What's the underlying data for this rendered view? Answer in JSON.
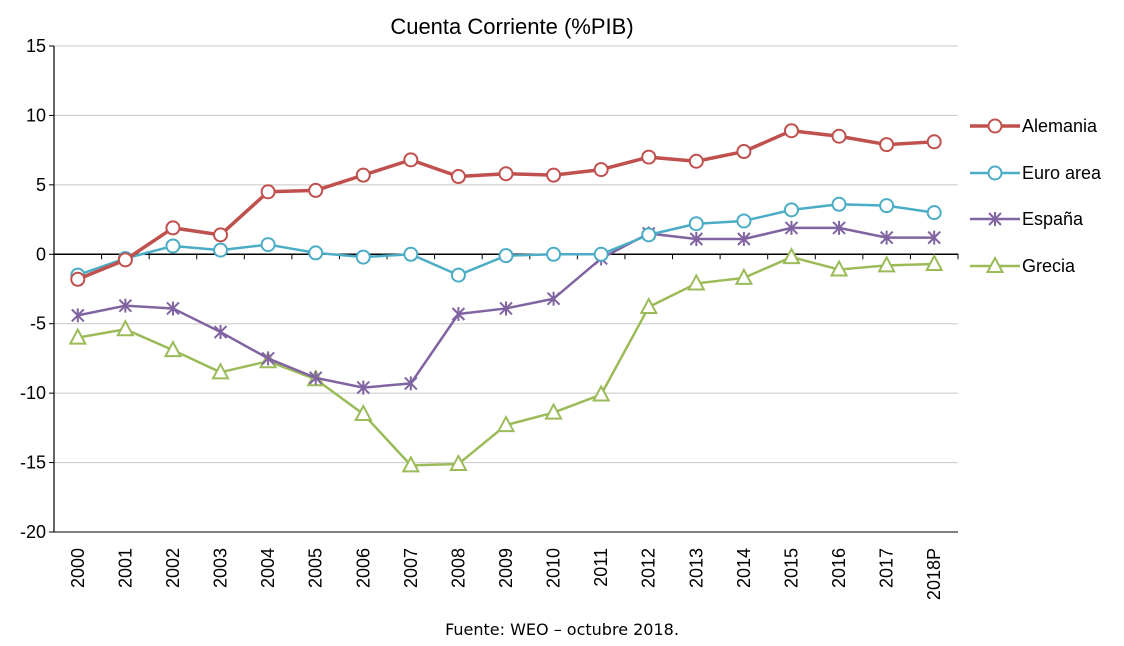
{
  "chart_data": {
    "type": "line",
    "title": "Cuenta Corriente (%PIB)",
    "xlabel": "",
    "ylabel": "",
    "categories": [
      "2000",
      "2001",
      "2002",
      "2003",
      "2004",
      "2005",
      "2006",
      "2007",
      "2008",
      "2009",
      "2010",
      "2011",
      "2012",
      "2013",
      "2014",
      "2015",
      "2016",
      "2017",
      "2018P"
    ],
    "ylim": [
      -20,
      15
    ],
    "yticks": [
      15,
      10,
      5,
      0,
      -5,
      -10,
      -15,
      -20
    ],
    "ytick_labels": [
      "15",
      "10",
      "5",
      "0",
      "-5",
      "-10",
      "-15",
      "-20"
    ],
    "grid": true,
    "legend_position": "right",
    "series": [
      {
        "name": "Alemania",
        "color": "#c0504d",
        "marker": "circle",
        "values": [
          -1.8,
          -0.4,
          1.9,
          1.4,
          4.5,
          4.6,
          5.7,
          6.8,
          5.6,
          5.8,
          5.7,
          6.1,
          7.0,
          6.7,
          7.4,
          8.9,
          8.5,
          7.9,
          8.1
        ]
      },
      {
        "name": "Euro area",
        "color": "#4bacc6",
        "marker": "circle",
        "values": [
          -1.5,
          -0.3,
          0.6,
          0.3,
          0.7,
          0.1,
          -0.2,
          0.0,
          -1.5,
          -0.1,
          0.0,
          0.0,
          1.4,
          2.2,
          2.4,
          3.2,
          3.6,
          3.5,
          3.0
        ]
      },
      {
        "name": "España",
        "color": "#8064a2",
        "marker": "star",
        "values": [
          -4.4,
          -3.7,
          -3.9,
          -5.6,
          -7.5,
          -8.9,
          -9.6,
          -9.3,
          -4.3,
          -3.9,
          -3.2,
          -0.3,
          1.5,
          1.1,
          1.1,
          1.9,
          1.9,
          1.2,
          1.2
        ]
      },
      {
        "name": "Grecia",
        "color": "#9bbb59",
        "marker": "triangle",
        "values": [
          -6.0,
          -5.4,
          -6.9,
          -8.5,
          -7.7,
          -9.0,
          -11.5,
          -15.2,
          -15.1,
          -12.3,
          -11.4,
          -10.1,
          -3.8,
          -2.1,
          -1.7,
          -0.2,
          -1.1,
          -0.8,
          -0.7
        ]
      }
    ],
    "source_note": "Fuente: WEO – octubre 2018."
  }
}
